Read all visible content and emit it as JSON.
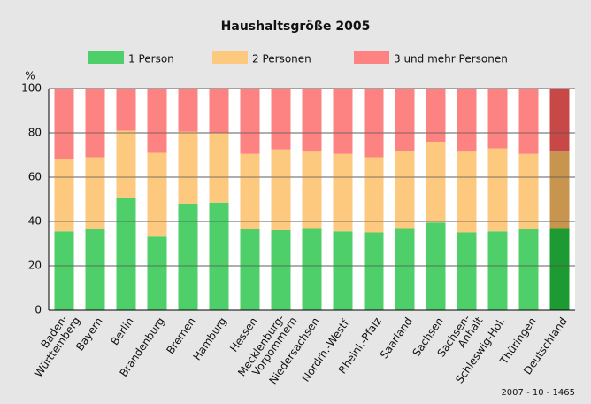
{
  "chart_data": {
    "type": "stacked_bar",
    "title": "Haushaltsgröße 2005",
    "y_unit": "%",
    "footnote": "2007 - 10 - 1465",
    "categories": [
      "Baden-\nWürttemberg",
      "Bayern",
      "Berlin",
      "Brandenburg",
      "Bremen",
      "Hamburg",
      "Hessen",
      "Mecklenburg-\nVorpommern",
      "Niedersachsen",
      "Nordrh.-Westf.",
      "Rheinl.-Pfalz",
      "Saarland",
      "Sachsen",
      "Sachsen-\nAnhalt",
      "Schleswig-Hol.",
      "Thüringen",
      "Deutschland"
    ],
    "series": [
      {
        "name": "1 Person",
        "color": "#4fcf6a",
        "colors": [
          "#4fcf6a",
          "#4fcf6a",
          "#4fcf6a",
          "#4fcf6a",
          "#4fcf6a",
          "#4fcf6a",
          "#4fcf6a",
          "#4fcf6a",
          "#4fcf6a",
          "#4fcf6a",
          "#4fcf6a",
          "#4fcf6a",
          "#4fcf6a",
          "#4fcf6a",
          "#4fcf6a",
          "#4fcf6a",
          "#1e9a32"
        ],
        "values": [
          35.5,
          36.5,
          50.5,
          33.5,
          48,
          48.5,
          36.5,
          36,
          37,
          35.5,
          35,
          37,
          39.5,
          35,
          35.5,
          36.5,
          37
        ]
      },
      {
        "name": "2 Personen",
        "color": "#fdc97e",
        "colors": [
          "#fdc97e",
          "#fdc97e",
          "#fdc97e",
          "#fdc97e",
          "#fdc97e",
          "#fdc97e",
          "#fdc97e",
          "#fdc97e",
          "#fdc97e",
          "#fdc97e",
          "#fdc97e",
          "#fdc97e",
          "#fdc97e",
          "#fdc97e",
          "#fdc97e",
          "#fdc97e",
          "#c8954f"
        ],
        "values": [
          32.5,
          32.5,
          30.5,
          37.5,
          32.5,
          31.5,
          34,
          36.5,
          34.5,
          35,
          34,
          35,
          36.5,
          36.5,
          37.5,
          34,
          34.5
        ]
      },
      {
        "name": "3 und mehr Personen",
        "color": "#fd8383",
        "colors": [
          "#fd8383",
          "#fd8383",
          "#fd8383",
          "#fd8383",
          "#fd8383",
          "#fd8383",
          "#fd8383",
          "#fd8383",
          "#fd8383",
          "#fd8383",
          "#fd8383",
          "#fd8383",
          "#fd8383",
          "#fd8383",
          "#fd8383",
          "#fd8383",
          "#c84848"
        ],
        "values": [
          32,
          31,
          19,
          29,
          19.5,
          20,
          29.5,
          27.5,
          28.5,
          29.5,
          31,
          28,
          24,
          28.5,
          27,
          29.5,
          28.5
        ]
      }
    ],
    "ylim": [
      0,
      100
    ],
    "yticks": [
      0,
      20,
      40,
      60,
      80,
      100
    ],
    "grid": true
  }
}
